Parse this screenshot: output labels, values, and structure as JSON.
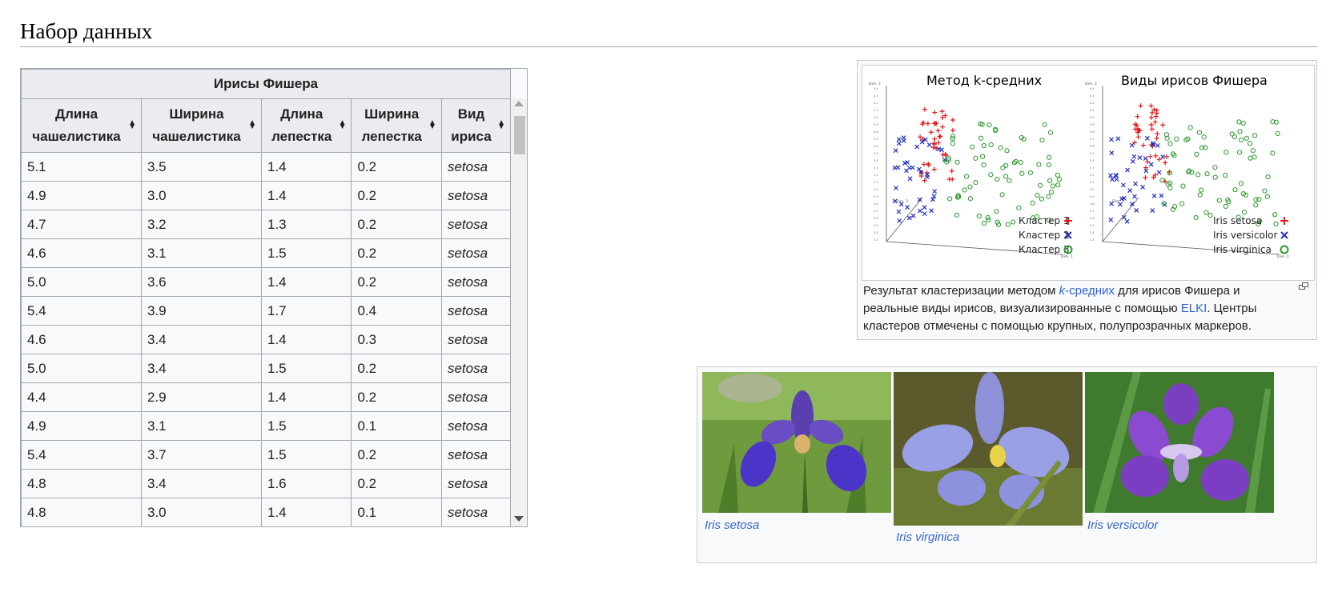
{
  "heading": "Набор данных",
  "table": {
    "caption": "Ирисы Фишера",
    "columns": [
      {
        "line1": "Длина",
        "line2": "чашелистика"
      },
      {
        "line1": "Ширина",
        "line2": "чашелистика"
      },
      {
        "line1": "Длина",
        "line2": "лепестка"
      },
      {
        "line1": "Ширина",
        "line2": "лепестка"
      },
      {
        "line1": "Вид",
        "line2": "ириса"
      }
    ],
    "rows": [
      [
        "5.1",
        "3.5",
        "1.4",
        "0.2",
        "setosa"
      ],
      [
        "4.9",
        "3.0",
        "1.4",
        "0.2",
        "setosa"
      ],
      [
        "4.7",
        "3.2",
        "1.3",
        "0.2",
        "setosa"
      ],
      [
        "4.6",
        "3.1",
        "1.5",
        "0.2",
        "setosa"
      ],
      [
        "5.0",
        "3.6",
        "1.4",
        "0.2",
        "setosa"
      ],
      [
        "5.4",
        "3.9",
        "1.7",
        "0.4",
        "setosa"
      ],
      [
        "4.6",
        "3.4",
        "1.4",
        "0.3",
        "setosa"
      ],
      [
        "5.0",
        "3.4",
        "1.5",
        "0.2",
        "setosa"
      ],
      [
        "4.4",
        "2.9",
        "1.4",
        "0.2",
        "setosa"
      ],
      [
        "4.9",
        "3.1",
        "1.5",
        "0.1",
        "setosa"
      ],
      [
        "5.4",
        "3.7",
        "1.5",
        "0.2",
        "setosa"
      ],
      [
        "4.8",
        "3.4",
        "1.6",
        "0.2",
        "setosa"
      ],
      [
        "4.8",
        "3.0",
        "1.4",
        "0.1",
        "setosa"
      ]
    ]
  },
  "figure": {
    "left_title": "Метод k-средних",
    "right_title": "Виды ирисов Фишера",
    "left_legend": [
      "Кластер 1",
      "Кластер 2",
      "Кластер 3"
    ],
    "right_legend": [
      "Iris setosa",
      "Iris versicolor",
      "Iris virginica"
    ],
    "axis_labels": {
      "dim1": "Dim. 1",
      "dim2": "Dim. 2",
      "dim3": "Dim. 3"
    },
    "colors": {
      "red": "#e31a1c",
      "blue": "#1f2fbf",
      "green": "#2a9a2a"
    },
    "caption": {
      "part1": "Результат кластеризации методом ",
      "link_k": "k",
      "link_rest": "-средних",
      "part2": " для ирисов Фишера и реальные виды ирисов, визуализированные с помощью ",
      "link_elki": "ELKI",
      "part3": ". Центры кластеров отмечены с помощью крупных, полупрозрачных маркеров."
    }
  },
  "gallery": {
    "captions": [
      "Iris setosa",
      "Iris virginica",
      "Iris versicolor"
    ]
  },
  "chart_data": [
    {
      "type": "scatter",
      "title": "Метод k-средних",
      "series": [
        {
          "name": "Кластер 1",
          "color": "#e31a1c"
        },
        {
          "name": "Кластер 2",
          "color": "#1f2fbf"
        },
        {
          "name": "Кластер 3",
          "color": "#2a9a2a"
        }
      ]
    },
    {
      "type": "scatter",
      "title": "Виды ирисов Фишера",
      "series": [
        {
          "name": "Iris setosa",
          "color": "#e31a1c"
        },
        {
          "name": "Iris versicolor",
          "color": "#1f2fbf"
        },
        {
          "name": "Iris virginica",
          "color": "#2a9a2a"
        }
      ]
    }
  ]
}
